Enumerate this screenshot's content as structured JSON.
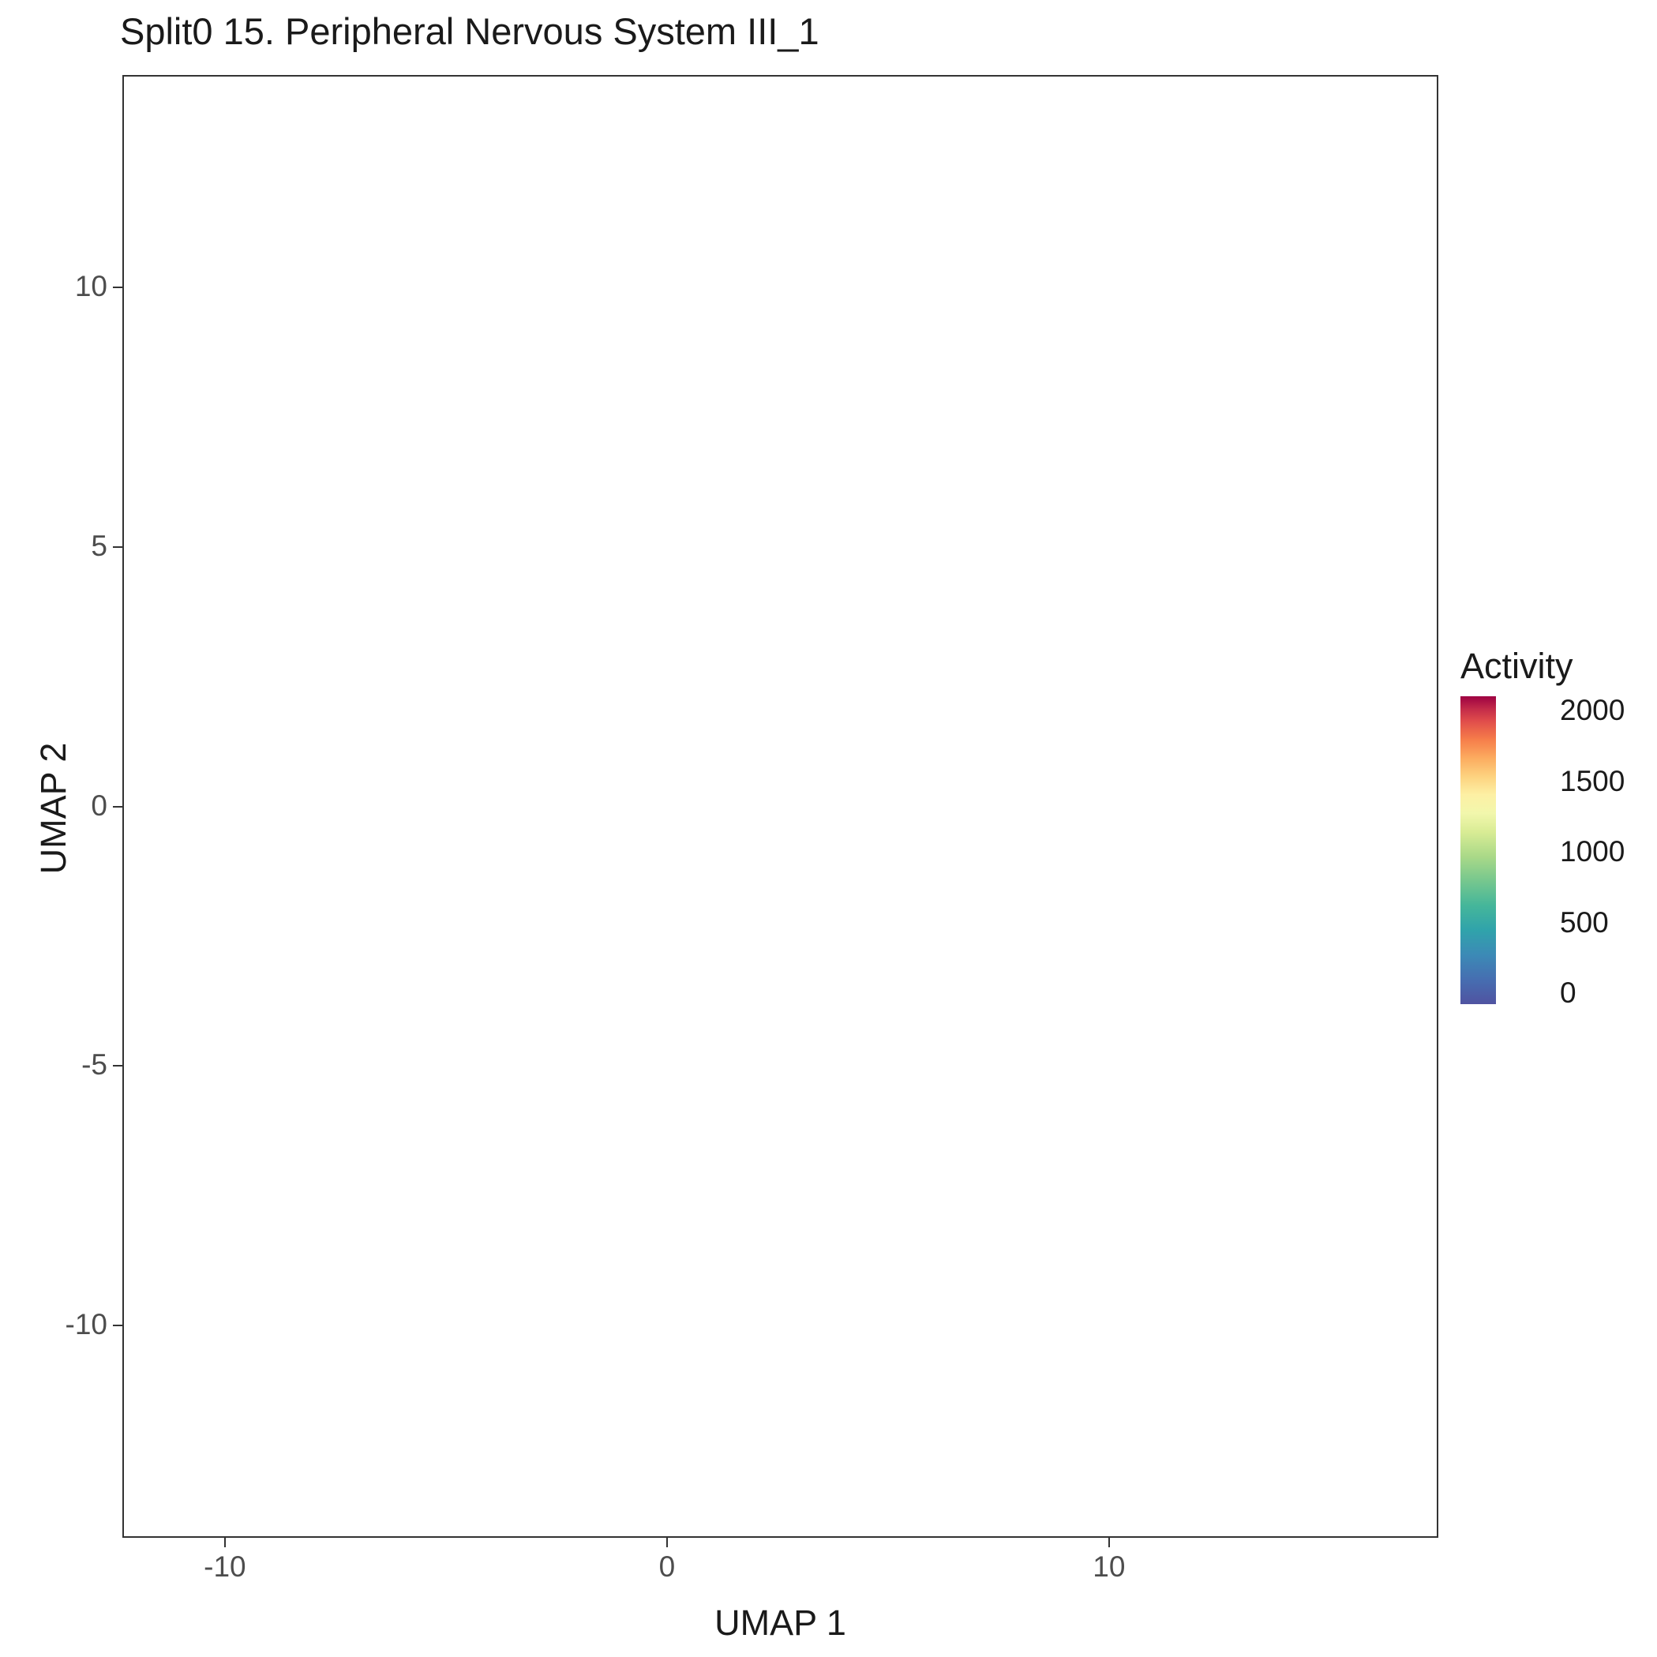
{
  "title": "Split0 15. Peripheral Nervous System III_1",
  "axes": {
    "x": {
      "label": "UMAP 1",
      "ticks": [
        -10,
        0,
        10
      ]
    },
    "y": {
      "label": "UMAP 2",
      "ticks": [
        -10,
        -5,
        0,
        5,
        10
      ]
    }
  },
  "legend": {
    "title": "Activity",
    "ticks": [
      2000,
      1500,
      1000,
      500,
      0
    ],
    "min": 0,
    "max": 2000
  },
  "colormap": [
    [
      0.0,
      "#5053a1"
    ],
    [
      0.08,
      "#466eb1"
    ],
    [
      0.16,
      "#3c8ab6"
    ],
    [
      0.24,
      "#30a3ab"
    ],
    [
      0.32,
      "#45b69a"
    ],
    [
      0.4,
      "#76c78e"
    ],
    [
      0.48,
      "#aad988"
    ],
    [
      0.56,
      "#d9ec95"
    ],
    [
      0.62,
      "#f2f7ac"
    ],
    [
      0.68,
      "#fdf0a4"
    ],
    [
      0.74,
      "#fdd27f"
    ],
    [
      0.8,
      "#fcab5f"
    ],
    [
      0.86,
      "#f67d4a"
    ],
    [
      0.92,
      "#e04c4b"
    ],
    [
      0.96,
      "#c22a49"
    ],
    [
      1.0,
      "#9e0142"
    ]
  ],
  "chart_data": {
    "type": "scatter",
    "title": "Split0 15. Peripheral Nervous System III_1",
    "xlabel": "UMAP 1",
    "ylabel": "UMAP 2",
    "xlim": [
      -12.32,
      17.45
    ],
    "ylim": [
      -14.1,
      14.1
    ],
    "color_scale": {
      "name": "Activity",
      "range": [
        0,
        2000
      ]
    },
    "point_radius_px": 5.5,
    "seed": 1234,
    "clusters": [
      {
        "name": "top-small",
        "blobs": [
          {
            "n": 110,
            "cx": 3.5,
            "cy": 12.35,
            "sx": 0.42,
            "sy": 0.33
          }
        ],
        "points": [
          [
            3.1,
            12.0,
            650
          ],
          [
            3.3,
            11.9,
            700
          ],
          [
            3.2,
            12.25,
            600
          ],
          [
            3.38,
            12.1,
            520
          ],
          [
            3.05,
            12.2,
            580
          ],
          [
            4.35,
            12.5,
            0
          ],
          [
            2.95,
            11.75,
            0
          ]
        ]
      },
      {
        "name": "upper-left-small",
        "blobs": [
          {
            "n": 150,
            "cx": -3.5,
            "cy": 10.45,
            "sx": 0.5,
            "sy": 0.42,
            "maxAct": 500,
            "power": 7
          }
        ],
        "points": [
          [
            -3.3,
            10.65,
            880
          ],
          [
            -3.6,
            10.2,
            620
          ],
          [
            -3.42,
            9.92,
            700
          ],
          [
            -3.15,
            10.3,
            560
          ],
          [
            -2.48,
            10.35,
            0
          ],
          [
            -4.3,
            11.0,
            0
          ]
        ]
      },
      {
        "name": "upper-left-large",
        "blobs": [
          {
            "n": 300,
            "cx": -7.3,
            "cy": 10.3,
            "sx": 0.7,
            "sy": 0.55
          },
          {
            "n": 200,
            "cx": -6.2,
            "cy": 9.55,
            "sx": 0.6,
            "sy": 0.5
          },
          {
            "n": 70,
            "cx": -5.4,
            "cy": 8.7,
            "sx": 0.35,
            "sy": 0.4
          }
        ],
        "points": [
          [
            -7.0,
            10.0,
            550
          ],
          [
            -4.9,
            7.9,
            0
          ],
          [
            -4.5,
            7.4,
            0
          ],
          [
            -6.9,
            8.6,
            0
          ],
          [
            -8.3,
            9.0,
            0
          ]
        ]
      },
      {
        "name": "central-upper-mass",
        "blobs": [
          {
            "n": 500,
            "cx": -3.8,
            "cy": 5.7,
            "sx": 1.0,
            "sy": 0.9
          },
          {
            "n": 800,
            "cx": -1.8,
            "cy": 6.6,
            "sx": 1.1,
            "sy": 1.0
          },
          {
            "n": 900,
            "cx": 0.3,
            "cy": 6.6,
            "sx": 1.2,
            "sy": 1.1
          },
          {
            "n": 800,
            "cx": 2.3,
            "cy": 5.9,
            "sx": 1.2,
            "sy": 1.0
          },
          {
            "n": 500,
            "cx": 4.3,
            "cy": 5.2,
            "sx": 1.0,
            "sy": 0.9
          },
          {
            "n": 400,
            "cx": 0.0,
            "cy": 4.6,
            "sx": 1.0,
            "sy": 0.6
          },
          {
            "n": 250,
            "cx": -2.0,
            "cy": 4.4,
            "sx": 0.7,
            "sy": 0.5
          },
          {
            "n": 160,
            "cx": 2.5,
            "cy": 8.6,
            "sx": 0.5,
            "sy": 0.7
          },
          {
            "n": 220,
            "cx": 5.9,
            "cy": 4.7,
            "sx": 0.6,
            "sy": 0.6
          },
          {
            "n": 150,
            "cx": 5.3,
            "cy": 5.9,
            "sx": 0.5,
            "sy": 0.5
          },
          {
            "n": 120,
            "cx": -0.8,
            "cy": 3.5,
            "sx": 0.5,
            "sy": 0.4
          },
          {
            "n": 160,
            "cx": 2.7,
            "cy": 3.6,
            "sx": 0.7,
            "sy": 0.4
          }
        ],
        "points": [
          [
            1.9,
            5.9,
            850
          ],
          [
            0.9,
            4.9,
            600
          ],
          [
            1.6,
            4.4,
            650
          ],
          [
            -0.5,
            5.2,
            550
          ],
          [
            4.0,
            4.6,
            650
          ],
          [
            4.9,
            4.3,
            600
          ],
          [
            -2.5,
            4.2,
            600
          ],
          [
            5.6,
            4.2,
            700
          ],
          [
            2.3,
            3.3,
            620
          ],
          [
            3.3,
            4.7,
            580
          ],
          [
            -3.4,
            4.5,
            520
          ]
        ]
      },
      {
        "name": "hot-cluster",
        "blobs": [
          {
            "n": 220,
            "cx": -3.3,
            "cy": 1.9,
            "sx": 0.55,
            "sy": 0.6,
            "maxAct": 1000,
            "power": 4
          },
          {
            "n": 260,
            "cx": -2.7,
            "cy": 0.7,
            "sx": 0.6,
            "sy": 0.8,
            "maxAct": 1100,
            "power": 3.5
          },
          {
            "n": 130,
            "cx": -3.7,
            "cy": 0.3,
            "sx": 0.4,
            "sy": 0.6,
            "maxAct": 800,
            "power": 5
          },
          {
            "n": 100,
            "cx": -2.3,
            "cy": -0.6,
            "sx": 0.45,
            "sy": 0.45,
            "maxAct": 600,
            "power": 6
          }
        ],
        "points": [
          [
            -1.3,
            1.45,
            2000
          ],
          [
            -1.85,
            1.5,
            1500
          ],
          [
            -2.3,
            2.2,
            1400
          ],
          [
            -2.1,
            1.1,
            1150
          ],
          [
            -2.6,
            0.85,
            1100
          ],
          [
            -3.0,
            2.5,
            950
          ],
          [
            -2.45,
            -0.1,
            1000
          ],
          [
            -2.0,
            0.3,
            900
          ],
          [
            -3.3,
            0.6,
            850
          ],
          [
            -2.75,
            1.5,
            1050
          ],
          [
            -3.05,
            -0.5,
            800
          ],
          [
            -2.2,
            1.9,
            1000
          ],
          [
            -1.6,
            0.9,
            1250
          ],
          [
            -2.9,
            3.05,
            700
          ],
          [
            -1.1,
            1.7,
            600
          ],
          [
            -1.0,
            1.25,
            500
          ]
        ]
      },
      {
        "name": "center-strand",
        "blobs": [
          {
            "n": 110,
            "cx": 0.4,
            "cy": 1.7,
            "sx": 0.25,
            "sy": 0.75,
            "maxAct": 300
          },
          {
            "n": 60,
            "cx": 0.25,
            "cy": 0.2,
            "sx": 0.3,
            "sy": 0.4,
            "maxAct": 300
          },
          {
            "n": 40,
            "cx": 0.8,
            "cy": 2.6,
            "sx": 0.3,
            "sy": 0.3,
            "maxAct": 300
          }
        ],
        "points": [
          [
            -0.4,
            2.3,
            0
          ],
          [
            1.0,
            -0.2,
            0
          ]
        ]
      },
      {
        "name": "center-right",
        "blobs": [
          {
            "n": 260,
            "cx": 3.4,
            "cy": 0.2,
            "sx": 0.6,
            "sy": 0.6
          },
          {
            "n": 150,
            "cx": 4.6,
            "cy": 0.4,
            "sx": 0.5,
            "sy": 0.4
          },
          {
            "n": 140,
            "cx": 5.6,
            "cy": 0.1,
            "sx": 0.5,
            "sy": 0.45
          },
          {
            "n": 90,
            "cx": 4.4,
            "cy": -1.1,
            "sx": 0.4,
            "sy": 0.35
          },
          {
            "n": 80,
            "cx": 2.5,
            "cy": 1.5,
            "sx": 0.4,
            "sy": 0.5
          }
        ],
        "lines": [
          {
            "n": 110,
            "x1": 1.6,
            "y1": 2.7,
            "x2": 3.0,
            "y2": 0.9,
            "jitter": 0.25
          }
        ],
        "points": [
          [
            6.25,
            -0.45,
            650
          ],
          [
            6.8,
            0.9,
            0
          ],
          [
            5.0,
            1.5,
            0
          ],
          [
            2.6,
            -1.4,
            0
          ]
        ]
      },
      {
        "name": "right-column",
        "blobs": [
          {
            "n": 170,
            "cx": 9.7,
            "cy": 2.7,
            "sx": 0.6,
            "sy": 0.45
          },
          {
            "n": 130,
            "cx": 10.8,
            "cy": 2.9,
            "sx": 0.5,
            "sy": 0.4
          },
          {
            "n": 160,
            "cx": 10.4,
            "cy": 1.8,
            "sx": 0.45,
            "sy": 0.6
          },
          {
            "n": 140,
            "cx": 10.6,
            "cy": 0.5,
            "sx": 0.3,
            "sy": 0.7
          },
          {
            "n": 90,
            "cx": 10.5,
            "cy": -0.8,
            "sx": 0.28,
            "sy": 0.5
          }
        ],
        "points": [
          [
            10.3,
            1.95,
            600
          ],
          [
            10.6,
            1.1,
            800
          ],
          [
            9.3,
            1.4,
            0
          ],
          [
            9.3,
            -2.3,
            0
          ],
          [
            8.9,
            3.4,
            0
          ]
        ]
      },
      {
        "name": "far-right-dot",
        "blobs": [
          {
            "n": 55,
            "cx": 12.5,
            "cy": 7.0,
            "sx": 0.3,
            "sy": 0.28
          }
        ]
      },
      {
        "name": "far-right-small",
        "blobs": [
          {
            "n": 70,
            "cx": 14.9,
            "cy": -1.35,
            "sx": 0.5,
            "sy": 0.24
          }
        ],
        "points": [
          [
            14.2,
            -1.1,
            0
          ]
        ]
      },
      {
        "name": "left-mid",
        "blobs": [
          {
            "n": 220,
            "cx": -10.3,
            "cy": -1.9,
            "sx": 0.6,
            "sy": 0.5
          },
          {
            "n": 280,
            "cx": -9.2,
            "cy": -2.6,
            "sx": 0.7,
            "sy": 0.6
          },
          {
            "n": 320,
            "cx": -7.9,
            "cy": -2.2,
            "sx": 0.8,
            "sy": 0.65
          },
          {
            "n": 200,
            "cx": -6.9,
            "cy": -3.1,
            "sx": 0.6,
            "sy": 0.5
          },
          {
            "n": 110,
            "cx": -5.9,
            "cy": -3.7,
            "sx": 0.5,
            "sy": 0.3
          }
        ],
        "lines": [
          {
            "n": 50,
            "x1": -5.4,
            "y1": -3.8,
            "x2": -4.5,
            "y2": -4.1,
            "jitter": 0.15
          }
        ],
        "points": [
          [
            -7.8,
            -1.7,
            850
          ],
          [
            -7.4,
            -2.1,
            700
          ],
          [
            -8.1,
            -2.5,
            900
          ],
          [
            -6.6,
            -2.9,
            600
          ],
          [
            -10.7,
            -3.4,
            650
          ],
          [
            -9.0,
            -4.2,
            0
          ],
          [
            -8.3,
            -4.5,
            0
          ],
          [
            -10.1,
            -0.85,
            0
          ],
          [
            -9.6,
            -1.2,
            550
          ]
        ]
      },
      {
        "name": "bottom-mass",
        "blobs": [
          {
            "n": 600,
            "cx": -5.3,
            "cy": -8.2,
            "sx": 0.9,
            "sy": 0.8
          },
          {
            "n": 800,
            "cx": -3.6,
            "cy": -9.3,
            "sx": 1.0,
            "sy": 0.9
          },
          {
            "n": 700,
            "cx": -1.8,
            "cy": -10.3,
            "sx": 0.9,
            "sy": 0.9
          },
          {
            "n": 700,
            "cx": -0.9,
            "cy": -12.3,
            "sx": 0.9,
            "sy": 0.8
          },
          {
            "n": 400,
            "cx": 0.3,
            "cy": -11.0,
            "sx": 0.7,
            "sy": 0.8
          },
          {
            "n": 300,
            "cx": -4.9,
            "cy": -10.3,
            "sx": 0.6,
            "sy": 0.6
          },
          {
            "n": 350,
            "cx": -2.4,
            "cy": -7.3,
            "sx": 0.8,
            "sy": 0.6
          },
          {
            "n": 250,
            "cx": -4.2,
            "cy": -6.9,
            "sx": 0.7,
            "sy": 0.5
          },
          {
            "n": 120,
            "cx": -0.9,
            "cy": -6.4,
            "sx": 0.4,
            "sy": 0.4
          },
          {
            "n": 180,
            "cx": 0.9,
            "cy": -9.0,
            "sx": 0.4,
            "sy": 0.8
          },
          {
            "n": 160,
            "cx": 0.4,
            "cy": -13.0,
            "sx": 0.5,
            "sy": 0.4
          },
          {
            "n": 80,
            "cx": -6.3,
            "cy": -8.9,
            "sx": 0.3,
            "sy": 0.6
          }
        ],
        "lines": [
          {
            "n": 130,
            "x1": 1.7,
            "y1": -2.9,
            "x2": -0.45,
            "y2": -6.26,
            "jitter": 0.3
          }
        ],
        "points": [
          [
            -3.0,
            -9.0,
            600
          ],
          [
            -1.5,
            -9.9,
            650
          ],
          [
            -0.3,
            -11.6,
            550
          ],
          [
            2.0,
            -2.5,
            0
          ],
          [
            -2.2,
            -13.6,
            0
          ]
        ]
      },
      {
        "name": "bottom-mid-right",
        "blobs": [
          {
            "n": 220,
            "cx": 4.3,
            "cy": -6.3,
            "sx": 0.6,
            "sy": 0.5
          },
          {
            "n": 220,
            "cx": 4.0,
            "cy": -7.4,
            "sx": 0.6,
            "sy": 0.5
          },
          {
            "n": 120,
            "cx": 4.6,
            "cy": -8.1,
            "sx": 0.4,
            "sy": 0.4
          }
        ],
        "points": [
          [
            3.4,
            -6.05,
            700
          ],
          [
            4.5,
            -8.35,
            600
          ],
          [
            3.0,
            -5.35,
            0
          ],
          [
            5.6,
            -5.8,
            0
          ]
        ]
      },
      {
        "name": "bottom-right-arc",
        "blobs": [
          {
            "n": 220,
            "cx": 9.4,
            "cy": -4.5,
            "sx": 0.7,
            "sy": 0.4
          },
          {
            "n": 150,
            "cx": 10.5,
            "cy": -5.0,
            "sx": 0.45,
            "sy": 0.5
          },
          {
            "n": 100,
            "cx": 10.8,
            "cy": -6.0,
            "sx": 0.35,
            "sy": 0.45
          },
          {
            "n": 160,
            "cx": 9.6,
            "cy": -6.6,
            "sx": 0.6,
            "sy": 0.4
          },
          {
            "n": 120,
            "cx": 8.3,
            "cy": -6.9,
            "sx": 0.5,
            "sy": 0.35
          },
          {
            "n": 90,
            "cx": 7.6,
            "cy": -5.5,
            "sx": 0.35,
            "sy": 0.5
          }
        ],
        "points": [
          [
            8.9,
            -4.3,
            700
          ],
          [
            8.0,
            -7.0,
            750
          ],
          [
            7.3,
            -4.3,
            0
          ],
          [
            11.3,
            -4.4,
            0
          ]
        ]
      }
    ],
    "singles": [
      [
        6.3,
        2.9
      ],
      [
        1.0,
        -1.05
      ],
      [
        1.35,
        -1.9
      ],
      [
        -0.2,
        -2.6
      ],
      [
        4.9,
        -2.6
      ],
      [
        5.3,
        -3.2
      ],
      [
        2.9,
        -4.3
      ],
      [
        -4.4,
        2.9
      ],
      [
        -4.9,
        3.3
      ],
      [
        -1.1,
        10.3
      ],
      [
        1.0,
        9.9
      ],
      [
        2.1,
        10.6
      ],
      [
        -6.9,
        7.5
      ],
      [
        12.3,
        3.4
      ],
      [
        0.2,
        12.6
      ],
      [
        -11.1,
        -0.6
      ],
      [
        7.0,
        -2.3
      ]
    ]
  }
}
